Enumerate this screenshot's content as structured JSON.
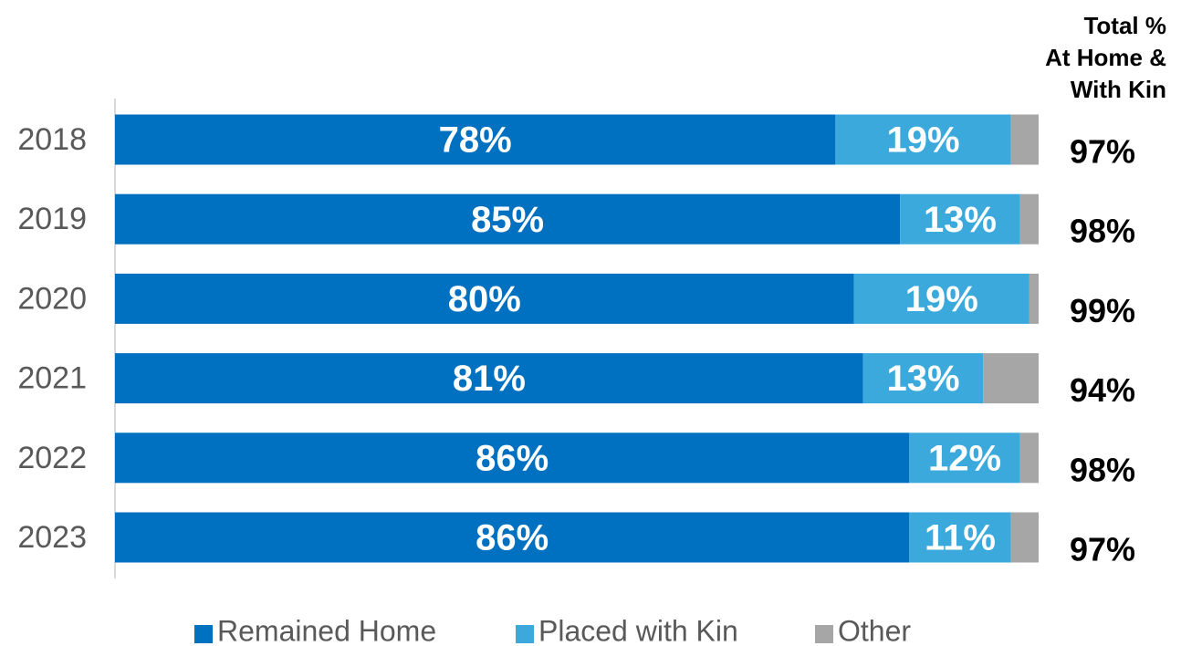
{
  "chart_data": {
    "type": "stacked-barh",
    "categories": [
      "2018",
      "2019",
      "2020",
      "2021",
      "2022",
      "2023"
    ],
    "xlim": [
      0,
      100
    ],
    "series": [
      {
        "name": "Remained Home",
        "color": "#0070c0",
        "values": [
          78,
          85,
          80,
          81,
          86,
          86
        ],
        "value_labels": [
          "78%",
          "85%",
          "80%",
          "81%",
          "86%",
          "86%"
        ]
      },
      {
        "name": "Placed with Kin",
        "color": "#3ba9dc",
        "values": [
          19,
          13,
          19,
          13,
          12,
          11
        ],
        "value_labels": [
          "19%",
          "13%",
          "19%",
          "13%",
          "12%",
          "11%"
        ]
      },
      {
        "name": "Other",
        "color": "#a6a6a6",
        "values": [
          3,
          2,
          1,
          6,
          2,
          3
        ]
      }
    ],
    "totals_title": [
      "Total %",
      "At Home &",
      "With Kin"
    ],
    "totals": {
      "values": [
        97,
        98,
        99,
        94,
        98,
        97
      ],
      "value_labels": [
        "97%",
        "98%",
        "99%",
        "94%",
        "98%",
        "97%"
      ]
    },
    "legend": "bottom"
  }
}
